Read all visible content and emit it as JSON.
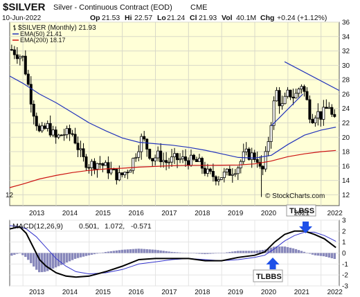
{
  "header": {
    "symbol": "$SILVER",
    "name": "Silver - Continuous Contract (EOD)",
    "exchange": "CME",
    "date": "10-Jun-2022",
    "stats": {
      "op_label": "Op",
      "op": "21.53",
      "hi_label": "Hi",
      "hi": "22.57",
      "lo_label": "Lo",
      "lo": "21.24",
      "cl_label": "Cl",
      "cl": "21.93",
      "vol_label": "Vol",
      "vol": "40.1M",
      "chg_label": "Chg",
      "chg": "+0.24 (+1.12%)"
    },
    "copyright": "© StockCharts.com"
  },
  "legend": {
    "price": "$SILVER (Monthly) 21.93",
    "ema50": "EMA(50) 21.41",
    "ema200": "EMA(200) 18.17"
  },
  "macd": {
    "label": "MACD(12,26,9)",
    "v1": "0.501,",
    "v2": "1.072,",
    "v3": "-0.571"
  },
  "annotations": {
    "tlbss": "TLBSS",
    "tlbbs": "TLBBS"
  },
  "colors": {
    "price_bg": "#ffffd7",
    "macd_bg": "#ffffff",
    "ema50": "#2233bb",
    "ema200": "#cc1111",
    "signal": "#3333cc",
    "histogram": "#8888bb",
    "annotation_arrow": "#1e50e8"
  },
  "chart_data": [
    {
      "type": "candlestick",
      "ylim": [
        10.5,
        36
      ],
      "y_ticks": [
        12,
        14,
        16,
        18,
        20,
        22,
        24,
        26,
        28,
        30,
        32,
        34,
        36
      ],
      "x_ticks": [
        "2013",
        "2014",
        "2015",
        "2016",
        "2017",
        "2018",
        "2019",
        "2020",
        "2021",
        "2022"
      ],
      "grid": true,
      "legend_position": "top-left",
      "x_range": [
        2012.6,
        2022.55
      ],
      "ohlc_anchors": [
        [
          2012.65,
          32.2
        ],
        [
          2013.0,
          31.0
        ],
        [
          2013.3,
          24.0
        ],
        [
          2013.5,
          20.5
        ],
        [
          2013.75,
          21.5
        ],
        [
          2014.0,
          19.8
        ],
        [
          2014.2,
          20.5
        ],
        [
          2014.5,
          20.5
        ],
        [
          2014.8,
          17.0
        ],
        [
          2015.0,
          16.2
        ],
        [
          2015.3,
          16.5
        ],
        [
          2015.6,
          15.5
        ],
        [
          2015.9,
          14.5
        ],
        [
          2016.0,
          14.8
        ],
        [
          2016.25,
          16.0
        ],
        [
          2016.6,
          20.0
        ],
        [
          2016.9,
          17.0
        ],
        [
          2017.1,
          17.5
        ],
        [
          2017.3,
          16.5
        ],
        [
          2017.6,
          17.0
        ],
        [
          2018.0,
          16.8
        ],
        [
          2018.3,
          16.5
        ],
        [
          2018.6,
          14.8
        ],
        [
          2018.9,
          14.5
        ],
        [
          2019.2,
          15.0
        ],
        [
          2019.5,
          16.0
        ],
        [
          2019.7,
          17.7
        ],
        [
          2019.9,
          17.5
        ],
        [
          2020.1,
          17.0
        ],
        [
          2020.2,
          14.5
        ],
        [
          2020.35,
          17.8
        ],
        [
          2020.55,
          24.0
        ],
        [
          2020.65,
          26.5
        ],
        [
          2020.8,
          24.0
        ],
        [
          2021.0,
          26.0
        ],
        [
          2021.1,
          26.0
        ],
        [
          2021.2,
          25.5
        ],
        [
          2021.4,
          27.5
        ],
        [
          2021.55,
          25.5
        ],
        [
          2021.7,
          22.5
        ],
        [
          2021.85,
          23.5
        ],
        [
          2022.0,
          23.0
        ],
        [
          2022.1,
          23.5
        ],
        [
          2022.25,
          24.5
        ],
        [
          2022.35,
          22.5
        ],
        [
          2022.45,
          21.93
        ]
      ],
      "ema50": [
        [
          2012.6,
          28.5
        ],
        [
          2013.0,
          27.5
        ],
        [
          2013.5,
          26.0
        ],
        [
          2014.0,
          24.8
        ],
        [
          2014.5,
          23.4
        ],
        [
          2015.0,
          22.0
        ],
        [
          2015.5,
          20.9
        ],
        [
          2016.0,
          19.9
        ],
        [
          2016.5,
          19.3
        ],
        [
          2017.0,
          19.1
        ],
        [
          2017.5,
          18.9
        ],
        [
          2018.0,
          18.6
        ],
        [
          2018.5,
          18.2
        ],
        [
          2019.0,
          17.7
        ],
        [
          2019.5,
          17.2
        ],
        [
          2020.0,
          17.1
        ],
        [
          2020.5,
          17.5
        ],
        [
          2021.0,
          19.0
        ],
        [
          2021.5,
          20.3
        ],
        [
          2022.0,
          21.0
        ],
        [
          2022.45,
          21.41
        ]
      ],
      "ema200": [
        [
          2012.6,
          13.0
        ],
        [
          2013.0,
          13.5
        ],
        [
          2013.5,
          14.2
        ],
        [
          2014.0,
          14.7
        ],
        [
          2014.5,
          15.1
        ],
        [
          2015.0,
          15.4
        ],
        [
          2015.5,
          15.6
        ],
        [
          2016.0,
          15.7
        ],
        [
          2016.5,
          15.85
        ],
        [
          2017.0,
          15.95
        ],
        [
          2017.5,
          16.05
        ],
        [
          2018.0,
          16.1
        ],
        [
          2018.5,
          16.1
        ],
        [
          2019.0,
          16.12
        ],
        [
          2019.5,
          16.15
        ],
        [
          2020.0,
          16.3
        ],
        [
          2020.5,
          16.7
        ],
        [
          2021.0,
          17.3
        ],
        [
          2021.5,
          17.7
        ],
        [
          2022.0,
          18.0
        ],
        [
          2022.45,
          18.17
        ]
      ],
      "trendlines": [
        [
          [
            2020.5,
            21.6
          ],
          [
            2021.45,
            26.0
          ]
        ],
        [
          [
            2020.9,
            30.5
          ],
          [
            2022.55,
            26.5
          ]
        ]
      ]
    },
    {
      "type": "line",
      "title": "MACD(12,26,9)",
      "ylim": [
        -3,
        3
      ],
      "y_ticks": [
        -3,
        -2,
        -1,
        0,
        1,
        2,
        3
      ],
      "x_ticks": [
        "2013",
        "2014",
        "2015",
        "2016",
        "2017",
        "2018",
        "2019",
        "2020",
        "2021",
        "2022"
      ],
      "grid": true,
      "x_range": [
        2012.6,
        2022.55
      ],
      "series": [
        {
          "role": "macd",
          "points": [
            [
              2012.6,
              2.2
            ],
            [
              2012.9,
              2.4
            ],
            [
              2013.1,
              1.8
            ],
            [
              2013.3,
              0.6
            ],
            [
              2013.5,
              -0.6
            ],
            [
              2013.7,
              -1.2
            ],
            [
              2014.0,
              -1.8
            ],
            [
              2014.3,
              -2.1
            ],
            [
              2014.6,
              -2.2
            ],
            [
              2015.0,
              -2.1
            ],
            [
              2015.5,
              -1.7
            ],
            [
              2016.0,
              -1.2
            ],
            [
              2016.5,
              -0.6
            ],
            [
              2017.0,
              -0.5
            ],
            [
              2017.5,
              -0.5
            ],
            [
              2018.0,
              -0.5
            ],
            [
              2018.5,
              -0.7
            ],
            [
              2019.0,
              -0.7
            ],
            [
              2019.5,
              -0.4
            ],
            [
              2020.0,
              -0.2
            ],
            [
              2020.3,
              0.1
            ],
            [
              2020.6,
              1.0
            ],
            [
              2020.9,
              1.7
            ],
            [
              2021.2,
              2.0
            ],
            [
              2021.5,
              2.0
            ],
            [
              2021.8,
              1.7
            ],
            [
              2022.1,
              1.3
            ],
            [
              2022.45,
              0.5
            ]
          ]
        },
        {
          "role": "signal",
          "points": [
            [
              2012.6,
              2.5
            ],
            [
              2012.9,
              2.4
            ],
            [
              2013.1,
              2.2
            ],
            [
              2013.4,
              1.5
            ],
            [
              2013.7,
              0.5
            ],
            [
              2014.0,
              -0.5
            ],
            [
              2014.3,
              -1.2
            ],
            [
              2014.6,
              -1.7
            ],
            [
              2015.0,
              -1.9
            ],
            [
              2015.5,
              -1.8
            ],
            [
              2016.0,
              -1.5
            ],
            [
              2016.5,
              -1.0
            ],
            [
              2017.0,
              -0.8
            ],
            [
              2017.5,
              -0.6
            ],
            [
              2018.0,
              -0.5
            ],
            [
              2018.5,
              -0.6
            ],
            [
              2019.0,
              -0.7
            ],
            [
              2019.5,
              -0.6
            ],
            [
              2020.0,
              -0.4
            ],
            [
              2020.3,
              -0.2
            ],
            [
              2020.6,
              0.4
            ],
            [
              2020.9,
              1.1
            ],
            [
              2021.2,
              1.6
            ],
            [
              2021.5,
              1.9
            ],
            [
              2021.8,
              1.9
            ],
            [
              2022.1,
              1.6
            ],
            [
              2022.45,
              1.07
            ]
          ]
        }
      ]
    }
  ]
}
